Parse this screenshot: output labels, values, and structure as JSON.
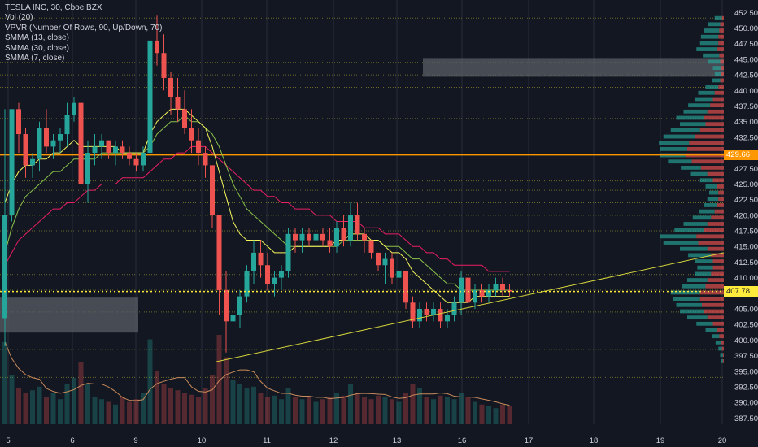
{
  "legend": {
    "title": "TESLA INC, 30, Cboe BZX",
    "lines": [
      "Vol (20)",
      "VPVR (Number Of Rows, 90, Up/Down, 70)",
      "SMMA (13, close)",
      "SMMA (30, close)",
      "SMMA (7, close)"
    ]
  },
  "colors": {
    "background": "#131722",
    "grid": "#2a2e39",
    "up": "#26a69a",
    "down": "#ef5350",
    "smma7": "#f5f55c",
    "smma13": "#8bc34a",
    "smma30": "#e91e63",
    "trendline": "#d4d43a",
    "highlight": "#ff9800",
    "last_price": "#ffeb3b",
    "text": "#d1d4dc"
  },
  "price_tags": {
    "highlight": "429.66",
    "last": "407.78"
  },
  "chart_data": {
    "type": "candlestick",
    "symbol": "TESLA INC",
    "interval": "30",
    "exchange": "Cboe BZX",
    "y_ticks": [
      "387.50",
      "390.00",
      "392.50",
      "395.00",
      "397.50",
      "400.00",
      "402.50",
      "405.00",
      "407.50",
      "410.00",
      "412.50",
      "415.00",
      "417.50",
      "420.00",
      "422.50",
      "425.00",
      "427.50",
      "430.00",
      "432.50",
      "435.00",
      "437.50",
      "440.00",
      "442.50",
      "445.00",
      "447.50",
      "450.00",
      "452.50"
    ],
    "x_ticks": [
      "5",
      "6",
      "9",
      "10",
      "11",
      "12",
      "13",
      "16",
      "17",
      "18",
      "19",
      "20"
    ],
    "ylim": [
      386.5,
      454.5
    ],
    "candles": [
      [
        403.5,
        437,
        399,
        420
      ],
      [
        420,
        437,
        419,
        437
      ],
      [
        437,
        438,
        430,
        433
      ],
      [
        433,
        434,
        426,
        428
      ],
      [
        428,
        430,
        426,
        429
      ],
      [
        429,
        435,
        427,
        434
      ],
      [
        434,
        437,
        430,
        431
      ],
      [
        431,
        433,
        429,
        432
      ],
      [
        432,
        434,
        430,
        433
      ],
      [
        433,
        438,
        431,
        436
      ],
      [
        436,
        439,
        435,
        438
      ],
      [
        438,
        440,
        422,
        425
      ],
      [
        425,
        432,
        422,
        430
      ],
      [
        430,
        433,
        428,
        431
      ],
      [
        431,
        433,
        429,
        432
      ],
      [
        432,
        432,
        429,
        430
      ],
      [
        430,
        432,
        428,
        431
      ],
      [
        431,
        432,
        429,
        430
      ],
      [
        430,
        431,
        428,
        429
      ],
      [
        429,
        430,
        427,
        428
      ],
      [
        428,
        431,
        427,
        430
      ],
      [
        430,
        452,
        428,
        448
      ],
      [
        448,
        452,
        444,
        446
      ],
      [
        446,
        449,
        440,
        442
      ],
      [
        442,
        443,
        436,
        439
      ],
      [
        439,
        442,
        435,
        437
      ],
      [
        437,
        440,
        433,
        434
      ],
      [
        434,
        437,
        430,
        432
      ],
      [
        432,
        434,
        428,
        430
      ],
      [
        430,
        431,
        426,
        428
      ],
      [
        428,
        428,
        418,
        420
      ],
      [
        420,
        420,
        404,
        408
      ],
      [
        408,
        411,
        398,
        403
      ],
      [
        403,
        406,
        400,
        404
      ],
      [
        404,
        408,
        402,
        407
      ],
      [
        407,
        412,
        406,
        411
      ],
      [
        411,
        416,
        409,
        414
      ],
      [
        414,
        416,
        410,
        412
      ],
      [
        412,
        414,
        408,
        409
      ],
      [
        409,
        411,
        407,
        410
      ],
      [
        410,
        412,
        408,
        411
      ],
      [
        411,
        418,
        410,
        417
      ],
      [
        417,
        418,
        414,
        416
      ],
      [
        416,
        418,
        414,
        417
      ],
      [
        417,
        418,
        415,
        416
      ],
      [
        416,
        418,
        414,
        417
      ],
      [
        417,
        418,
        415,
        416
      ],
      [
        416,
        418,
        414,
        415
      ],
      [
        415,
        419,
        414,
        418
      ],
      [
        418,
        420,
        415,
        416
      ],
      [
        416,
        422,
        415,
        420
      ],
      [
        420,
        422,
        416,
        417
      ],
      [
        417,
        418,
        414,
        416
      ],
      [
        416,
        416,
        413,
        414
      ],
      [
        414,
        414,
        411,
        412
      ],
      [
        412,
        414,
        409,
        413
      ],
      [
        413,
        414,
        409,
        410
      ],
      [
        410,
        412,
        408,
        411
      ],
      [
        411,
        411,
        405,
        406
      ],
      [
        406,
        407,
        402,
        403
      ],
      [
        403,
        406,
        402,
        405
      ],
      [
        405,
        406,
        403,
        404
      ],
      [
        404,
        406,
        403,
        405
      ],
      [
        405,
        406,
        402,
        403
      ],
      [
        403,
        405,
        402,
        404
      ],
      [
        404,
        407,
        403,
        406
      ],
      [
        406,
        411,
        404,
        410
      ],
      [
        410,
        411,
        405,
        406
      ],
      [
        406,
        409,
        405,
        408
      ],
      [
        408,
        409,
        406,
        407
      ],
      [
        407,
        409,
        406,
        408
      ],
      [
        408,
        410,
        407,
        409
      ],
      [
        409,
        410,
        407,
        408
      ],
      [
        408,
        409,
        407,
        407.78
      ]
    ],
    "volume": [
      92,
      55,
      40,
      35,
      38,
      42,
      30,
      35,
      28,
      45,
      52,
      70,
      45,
      30,
      28,
      25,
      22,
      30,
      25,
      28,
      35,
      95,
      60,
      45,
      40,
      38,
      35,
      33,
      30,
      40,
      55,
      100,
      75,
      50,
      45,
      40,
      42,
      35,
      30,
      32,
      28,
      40,
      30,
      28,
      30,
      25,
      28,
      30,
      35,
      32,
      45,
      35,
      30,
      28,
      32,
      30,
      28,
      25,
      35,
      45,
      40,
      30,
      28,
      32,
      30,
      28,
      35,
      30,
      25,
      22,
      20,
      18,
      22,
      20
    ],
    "smma7": [
      422,
      425,
      427,
      428,
      428,
      429,
      429,
      430,
      430,
      431,
      432,
      431,
      431,
      431,
      431,
      431,
      431,
      430,
      430,
      430,
      430,
      433,
      435,
      436,
      437,
      437,
      437,
      436,
      435,
      434,
      431,
      427,
      423,
      419,
      417,
      416,
      416,
      416,
      415,
      414,
      414,
      414,
      415,
      415,
      415,
      415,
      415,
      415,
      416,
      416,
      417,
      417,
      417,
      416,
      416,
      415,
      414,
      414,
      413,
      411,
      410,
      409,
      408,
      407,
      406,
      406,
      406,
      406,
      407,
      407,
      407,
      407,
      407,
      407
    ],
    "smma13": [
      414,
      418,
      421,
      423,
      424,
      425,
      426,
      427,
      427,
      428,
      429,
      429,
      429,
      429,
      430,
      430,
      430,
      430,
      430,
      430,
      430,
      431,
      433,
      434,
      435,
      435,
      436,
      435,
      435,
      434,
      433,
      431,
      428,
      425,
      423,
      421,
      420,
      419,
      418,
      417,
      416,
      415,
      415,
      415,
      415,
      415,
      415,
      415,
      415,
      416,
      416,
      416,
      416,
      416,
      416,
      415,
      415,
      415,
      414,
      413,
      413,
      412,
      411,
      410,
      409,
      409,
      408,
      408,
      408,
      408,
      408,
      408,
      408,
      408
    ],
    "smma30": [
      412,
      414,
      416,
      417,
      418,
      419,
      420,
      421,
      421,
      422,
      422,
      423,
      424,
      424,
      425,
      425,
      425,
      426,
      426,
      426,
      426,
      427,
      428,
      429,
      429,
      430,
      430,
      431,
      431,
      431,
      430,
      429,
      428,
      427,
      426,
      425,
      424,
      424,
      423,
      423,
      422,
      422,
      421,
      421,
      421,
      420,
      420,
      420,
      419,
      419,
      419,
      419,
      418,
      418,
      418,
      417,
      417,
      417,
      416,
      415,
      415,
      414,
      414,
      413,
      413,
      412,
      412,
      412,
      412,
      412,
      411,
      411,
      411,
      411
    ],
    "trendline": {
      "from": [
        397,
        396.5
      ],
      "to": [
        414,
        414
      ]
    },
    "horizontal_levels": {
      "highlight": 429.66,
      "dotted": [
        451.6,
        450,
        444.5,
        442.5,
        440.5,
        437.5,
        435.5,
        425.5,
        424,
        422,
        420,
        417.5,
        410.5,
        408,
        404.5,
        398.5,
        394
      ]
    },
    "zones": [
      {
        "x0": 317.5,
        "x1": 410,
        "y0": 442.2,
        "y1": 445.2
      },
      {
        "x0": 0,
        "x1": 151,
        "y0": 401.2,
        "y1": 406.8
      }
    ],
    "vpvr_rows": [
      {
        "price": 451.6,
        "up": 8,
        "down": 2
      },
      {
        "price": 450.6,
        "up": 13,
        "down": 4
      },
      {
        "price": 449.6,
        "up": 17,
        "down": 5
      },
      {
        "price": 448.6,
        "up": 19,
        "down": 6
      },
      {
        "price": 447.6,
        "up": 20,
        "down": 6
      },
      {
        "price": 446.6,
        "up": 23,
        "down": 7
      },
      {
        "price": 445.6,
        "up": 18,
        "down": 5
      },
      {
        "price": 444.6,
        "up": 13,
        "down": 4
      },
      {
        "price": 443.6,
        "up": 9,
        "down": 3
      },
      {
        "price": 442.6,
        "up": 7,
        "down": 3
      },
      {
        "price": 441.6,
        "up": 9,
        "down": 4
      },
      {
        "price": 440.6,
        "up": 14,
        "down": 6
      },
      {
        "price": 439.6,
        "up": 18,
        "down": 10
      },
      {
        "price": 438.6,
        "up": 20,
        "down": 12
      },
      {
        "price": 437.6,
        "up": 24,
        "down": 15
      },
      {
        "price": 436.6,
        "up": 26,
        "down": 18
      },
      {
        "price": 435.6,
        "up": 30,
        "down": 22
      },
      {
        "price": 434.6,
        "up": 28,
        "down": 20
      },
      {
        "price": 433.6,
        "up": 32,
        "down": 26
      },
      {
        "price": 432.6,
        "up": 34,
        "down": 32
      },
      {
        "price": 431.6,
        "up": 33,
        "down": 38
      },
      {
        "price": 430.6,
        "up": 30,
        "down": 40
      },
      {
        "price": 429.6,
        "up": 28,
        "down": 42
      },
      {
        "price": 428.6,
        "up": 26,
        "down": 35
      },
      {
        "price": 427.6,
        "up": 22,
        "down": 25
      },
      {
        "price": 426.6,
        "up": 18,
        "down": 18
      },
      {
        "price": 425.6,
        "up": 14,
        "down": 12
      },
      {
        "price": 424.6,
        "up": 12,
        "down": 8
      },
      {
        "price": 423.6,
        "up": 10,
        "down": 6
      },
      {
        "price": 422.6,
        "up": 12,
        "down": 6
      },
      {
        "price": 421.6,
        "up": 14,
        "down": 8
      },
      {
        "price": 420.6,
        "up": 17,
        "down": 10
      },
      {
        "price": 419.6,
        "up": 20,
        "down": 14
      },
      {
        "price": 418.6,
        "up": 26,
        "down": 18
      },
      {
        "price": 417.6,
        "up": 32,
        "down": 22
      },
      {
        "price": 416.6,
        "up": 40,
        "down": 30
      },
      {
        "price": 415.6,
        "up": 38,
        "down": 28
      },
      {
        "price": 414.6,
        "up": 30,
        "down": 18
      },
      {
        "price": 413.6,
        "up": 25,
        "down": 14
      },
      {
        "price": 412.6,
        "up": 20,
        "down": 12
      },
      {
        "price": 411.6,
        "up": 17,
        "down": 12
      },
      {
        "price": 410.6,
        "up": 18,
        "down": 14
      },
      {
        "price": 409.6,
        "up": 22,
        "down": 18
      },
      {
        "price": 408.6,
        "up": 26,
        "down": 20
      },
      {
        "price": 407.6,
        "up": 32,
        "down": 26
      },
      {
        "price": 406.6,
        "up": 30,
        "down": 26
      },
      {
        "price": 405.6,
        "up": 28,
        "down": 24
      },
      {
        "price": 404.6,
        "up": 26,
        "down": 22
      },
      {
        "price": 403.6,
        "up": 22,
        "down": 18
      },
      {
        "price": 402.6,
        "up": 18,
        "down": 12
      },
      {
        "price": 401.6,
        "up": 12,
        "down": 8
      },
      {
        "price": 400.6,
        "up": 8,
        "down": 5
      },
      {
        "price": 399.6,
        "up": 6,
        "down": 3
      },
      {
        "price": 398.6,
        "up": 4,
        "down": 2
      },
      {
        "price": 397.6,
        "up": 3,
        "down": 1
      },
      {
        "price": 396.6,
        "up": 2,
        "down": 1
      }
    ]
  }
}
